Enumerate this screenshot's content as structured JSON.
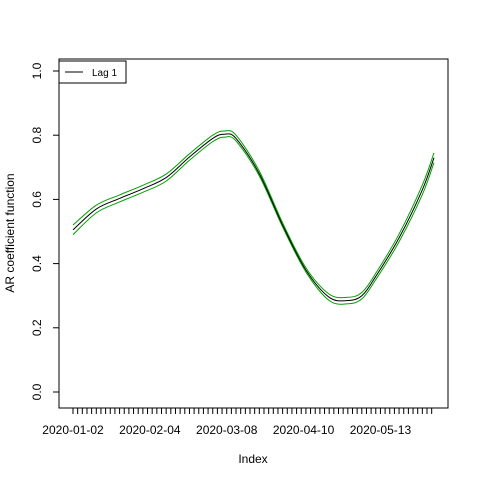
{
  "chart_data": {
    "type": "line",
    "xlabel": "Index",
    "ylabel": "AR coefficient function",
    "ylim": [
      0.0,
      1.0
    ],
    "yticks": [
      0.0,
      0.2,
      0.4,
      0.6,
      0.8,
      1.0
    ],
    "yticklabels": [
      "0.0",
      "0.2",
      "0.4",
      "0.6",
      "0.8",
      "1.0"
    ],
    "x_start": "2020-01-02",
    "x_end": "2020-06-05",
    "xtick_labels": [
      "2020-01-02",
      "2020-02-04",
      "2020-03-08",
      "2020-04-10",
      "2020-05-13"
    ],
    "legend": {
      "position": "top-left",
      "entries": [
        {
          "label": "Lag 1",
          "color": "#000000"
        }
      ]
    },
    "grid": false,
    "colors": {
      "line": "#000000",
      "band": "#00a000"
    },
    "series": [
      {
        "name": "Lag 1",
        "x": [
          "2020-01-02",
          "2020-01-12",
          "2020-01-22",
          "2020-02-01",
          "2020-02-11",
          "2020-02-21",
          "2020-03-02",
          "2020-03-07",
          "2020-03-12",
          "2020-03-22",
          "2020-04-01",
          "2020-04-11",
          "2020-04-21",
          "2020-04-29",
          "2020-05-05",
          "2020-05-11",
          "2020-05-21",
          "2020-05-31",
          "2020-06-05"
        ],
        "y": [
          0.505,
          0.57,
          0.603,
          0.633,
          0.668,
          0.732,
          0.79,
          0.803,
          0.79,
          0.68,
          0.52,
          0.38,
          0.295,
          0.285,
          0.3,
          0.36,
          0.48,
          0.63,
          0.73
        ],
        "y_lower": [
          0.49,
          0.558,
          0.592,
          0.622,
          0.657,
          0.722,
          0.78,
          0.794,
          0.782,
          0.673,
          0.514,
          0.374,
          0.285,
          0.275,
          0.29,
          0.35,
          0.468,
          0.615,
          0.715
        ],
        "y_upper": [
          0.52,
          0.582,
          0.614,
          0.644,
          0.679,
          0.742,
          0.8,
          0.813,
          0.8,
          0.688,
          0.527,
          0.387,
          0.305,
          0.295,
          0.31,
          0.37,
          0.492,
          0.645,
          0.745
        ]
      }
    ]
  }
}
